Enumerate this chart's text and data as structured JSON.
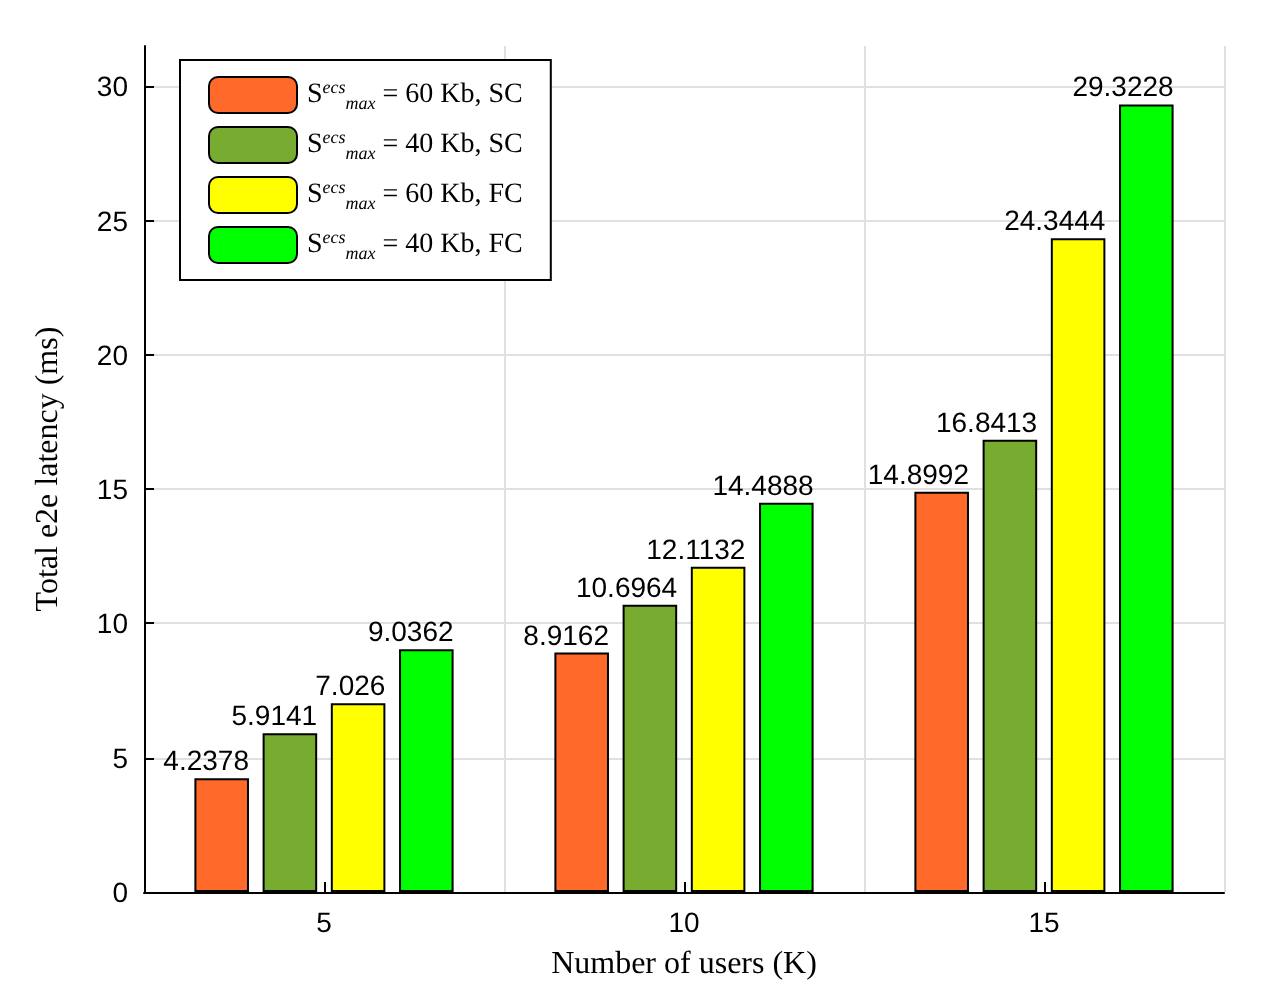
{
  "chart_data": {
    "type": "bar",
    "xlabel": "Number of users (K)",
    "ylabel": "Total e2e latency (ms)",
    "categories": [
      "5",
      "10",
      "15"
    ],
    "series": [
      {
        "name": "S$^{ecs}$$_{max}$ = 60 Kb, SC",
        "color": "#ff6929",
        "values": [
          4.2378,
          8.9162,
          14.8992
        ]
      },
      {
        "name": "S$^{ecs}$$_{max}$ = 40 Kb, SC",
        "color": "#77ac30",
        "values": [
          5.9141,
          10.6964,
          16.8413
        ]
      },
      {
        "name": "S$^{ecs}$$_{max}$ = 60 Kb, FC",
        "color": "#ffff00",
        "values": [
          7.026,
          12.1132,
          24.3444
        ]
      },
      {
        "name": "S$^{ecs}$$_{max}$ = 40 Kb, FC",
        "color": "#00ff00",
        "values": [
          9.0362,
          14.4888,
          29.3228
        ]
      }
    ],
    "ylim": [
      0,
      31.5
    ],
    "yticks": [
      0,
      5,
      10,
      15,
      20,
      25,
      30
    ],
    "grid": true,
    "legend": "top left",
    "data_labels": true
  }
}
